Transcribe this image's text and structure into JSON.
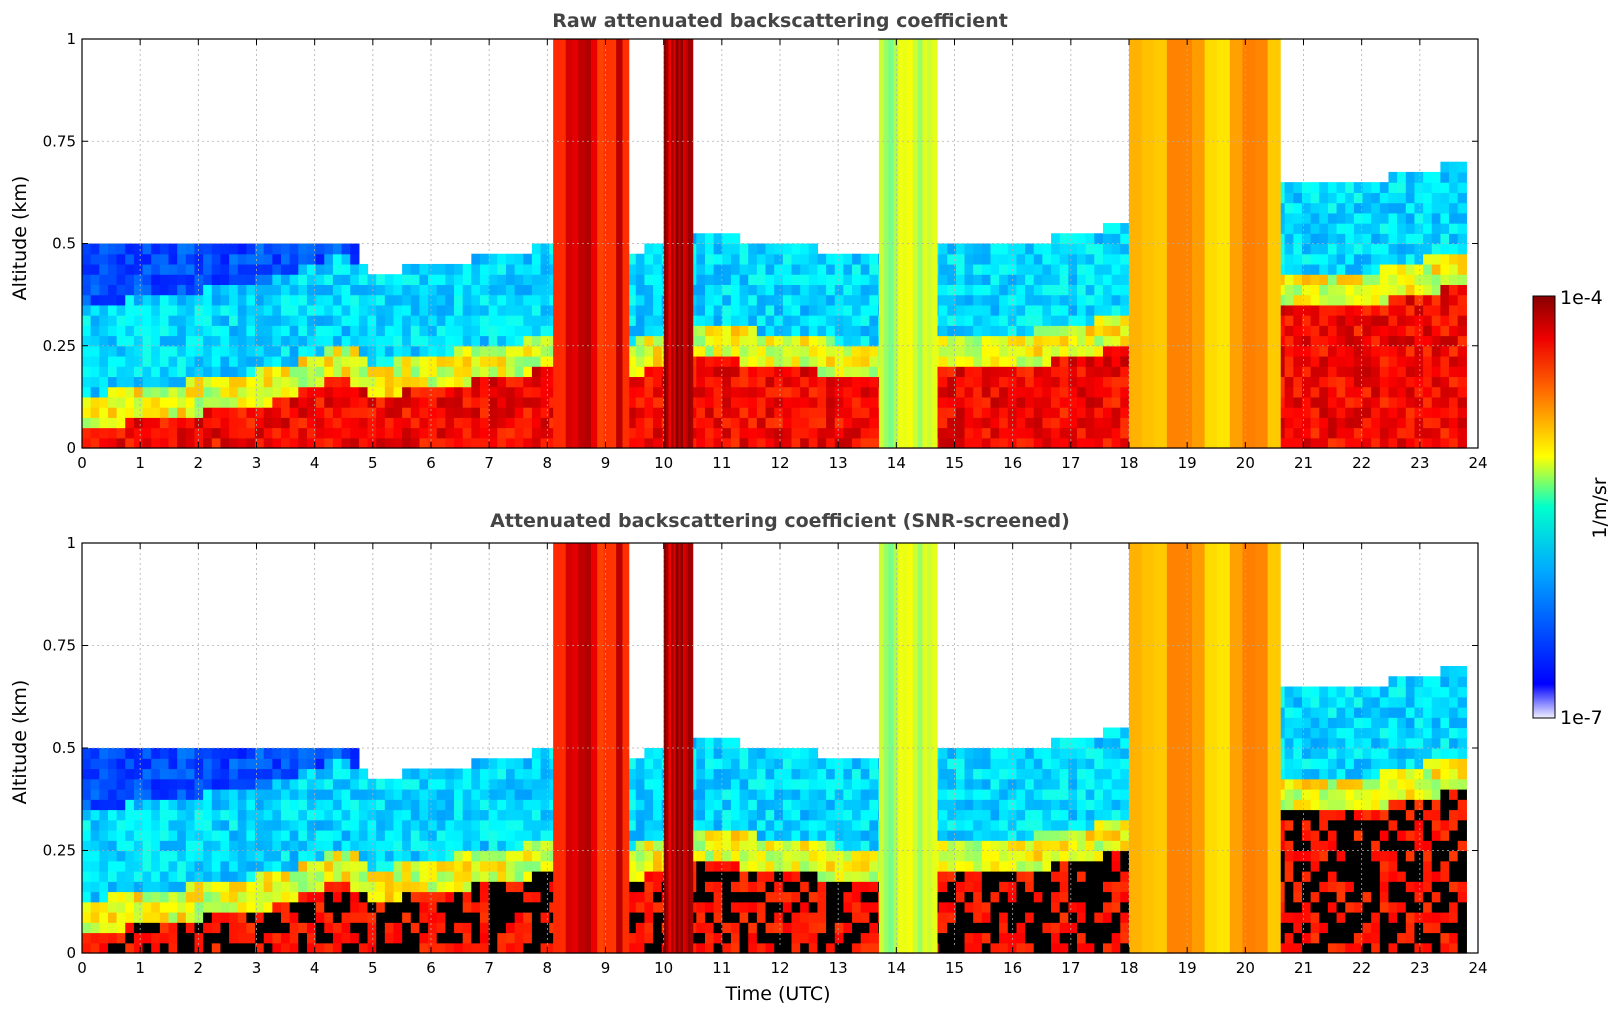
{
  "figure": {
    "xlabel": "Time (UTC)"
  },
  "colorbar": {
    "max_label": "1e-4",
    "min_label": "1e-7",
    "unit_label": "1/m/sr",
    "scale": "log",
    "colormap": "jet"
  },
  "chart_data": [
    {
      "type": "heatmap",
      "title": "Raw attenuated backscattering coefficient",
      "xlabel": "",
      "ylabel": "Altitude (km)",
      "xlim": [
        0,
        24
      ],
      "ylim": [
        0,
        1
      ],
      "xticks": [
        "0",
        "1",
        "2",
        "3",
        "4",
        "5",
        "6",
        "7",
        "8",
        "9",
        "10",
        "11",
        "12",
        "13",
        "14",
        "15",
        "16",
        "17",
        "18",
        "19",
        "20",
        "21",
        "22",
        "23",
        "24"
      ],
      "yticks": [
        "0",
        "0.25",
        "0.5",
        "0.75",
        "1"
      ],
      "grid": true,
      "data_end_time": 23.8,
      "layer_top_km": [
        [
          0,
          0.05
        ],
        [
          2.7,
          0.1
        ],
        [
          3.5,
          0.12
        ],
        [
          4.5,
          0.18
        ],
        [
          5,
          0.12
        ],
        [
          5.5,
          0.14
        ],
        [
          6.5,
          0.16
        ],
        [
          7.5,
          0.18
        ],
        [
          8,
          0.2
        ],
        [
          9.5,
          0.18
        ],
        [
          10.5,
          0.22
        ],
        [
          11,
          0.22
        ],
        [
          12,
          0.2
        ],
        [
          13,
          0.18
        ],
        [
          14,
          0.18
        ],
        [
          15,
          0.2
        ],
        [
          16,
          0.2
        ],
        [
          17,
          0.22
        ],
        [
          18,
          0.25
        ],
        [
          19,
          0.3
        ],
        [
          20,
          0.32
        ],
        [
          21,
          0.35
        ],
        [
          22,
          0.35
        ],
        [
          23,
          0.38
        ],
        [
          23.8,
          0.4
        ]
      ],
      "bands": [
        {
          "x": [
            8.1,
            9.4
          ],
          "y_top": 1.0,
          "level": 0.88
        },
        {
          "x": [
            10.0,
            10.5
          ],
          "y_top": 1.0,
          "level": 0.95
        },
        {
          "x": [
            13.7,
            14.7
          ],
          "y_top": 1.0,
          "level": 0.55
        },
        {
          "x": [
            18.0,
            20.6
          ],
          "y_top": 1.0,
          "level": 0.7
        }
      ]
    },
    {
      "type": "heatmap",
      "title": "Attenuated backscattering coefficient (SNR-screened)",
      "xlabel": "Time (UTC)",
      "ylabel": "Altitude (km)",
      "xlim": [
        0,
        24
      ],
      "ylim": [
        0,
        1
      ],
      "xticks": [
        "0",
        "1",
        "2",
        "3",
        "4",
        "5",
        "6",
        "7",
        "8",
        "9",
        "10",
        "11",
        "12",
        "13",
        "14",
        "15",
        "16",
        "17",
        "18",
        "19",
        "20",
        "21",
        "22",
        "23",
        "24"
      ],
      "yticks": [
        "0",
        "0.25",
        "0.5",
        "0.75",
        "1"
      ],
      "grid": true,
      "data_end_time": 23.8,
      "screened_saturation_color": "#000000",
      "layer_top_km": [
        [
          0,
          0.05
        ],
        [
          2.7,
          0.1
        ],
        [
          3.5,
          0.12
        ],
        [
          4.5,
          0.18
        ],
        [
          5,
          0.12
        ],
        [
          5.5,
          0.14
        ],
        [
          6.5,
          0.16
        ],
        [
          7.5,
          0.18
        ],
        [
          8,
          0.2
        ],
        [
          9.5,
          0.18
        ],
        [
          10.5,
          0.22
        ],
        [
          11,
          0.22
        ],
        [
          12,
          0.2
        ],
        [
          13,
          0.18
        ],
        [
          14,
          0.18
        ],
        [
          15,
          0.2
        ],
        [
          16,
          0.2
        ],
        [
          17,
          0.22
        ],
        [
          18,
          0.25
        ],
        [
          19,
          0.3
        ],
        [
          20,
          0.32
        ],
        [
          21,
          0.35
        ],
        [
          22,
          0.35
        ],
        [
          23,
          0.38
        ],
        [
          23.8,
          0.4
        ]
      ],
      "bands": [
        {
          "x": [
            8.1,
            9.4
          ],
          "y_top": 1.0,
          "level": 0.88
        },
        {
          "x": [
            10.0,
            10.5
          ],
          "y_top": 1.0,
          "level": 0.95
        },
        {
          "x": [
            13.7,
            14.7
          ],
          "y_top": 1.0,
          "level": 0.55
        },
        {
          "x": [
            18.0,
            20.6
          ],
          "y_top": 1.0,
          "level": 0.7
        }
      ]
    }
  ]
}
